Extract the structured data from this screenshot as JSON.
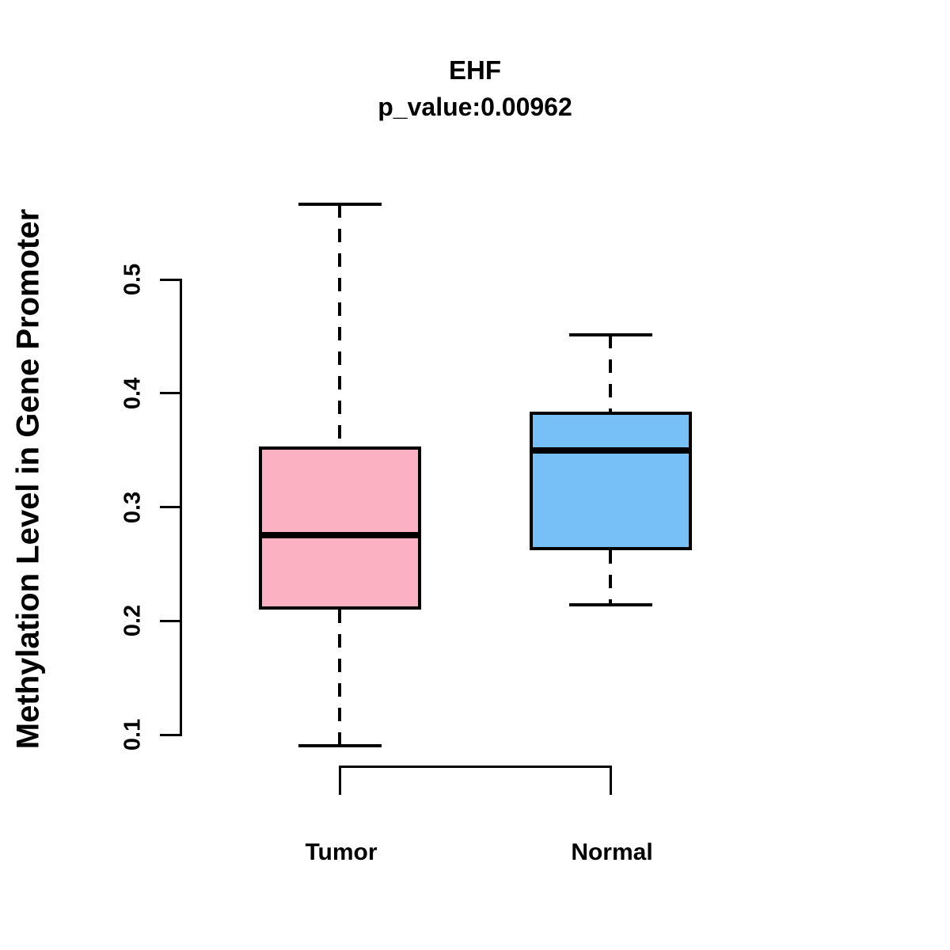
{
  "chart_data": {
    "type": "boxplot",
    "title": "EHF",
    "subtitle": "p_value:0.00962",
    "p_value": 0.00962,
    "gene": "EHF",
    "ylabel": "Methylation Level in Gene Promoter",
    "xlabel": "",
    "categories": [
      "Tumor",
      "Normal"
    ],
    "series": [
      {
        "name": "Tumor",
        "min": 0.09,
        "q1": 0.21,
        "median": 0.275,
        "q3": 0.353,
        "max": 0.566,
        "color": "#FCB1C3",
        "outliers": []
      },
      {
        "name": "Normal",
        "min": 0.214,
        "q1": 0.262,
        "median": 0.35,
        "q3": 0.384,
        "max": 0.451,
        "color": "#76BFF7",
        "outliers": []
      }
    ],
    "y_ticks": [
      0.1,
      0.2,
      0.3,
      0.4,
      0.5
    ],
    "ylim": [
      0.09,
      0.566
    ],
    "grid": false,
    "legend": false,
    "axis_color": "#000000",
    "text_color": "#000000",
    "background_color": "#ffffff"
  }
}
